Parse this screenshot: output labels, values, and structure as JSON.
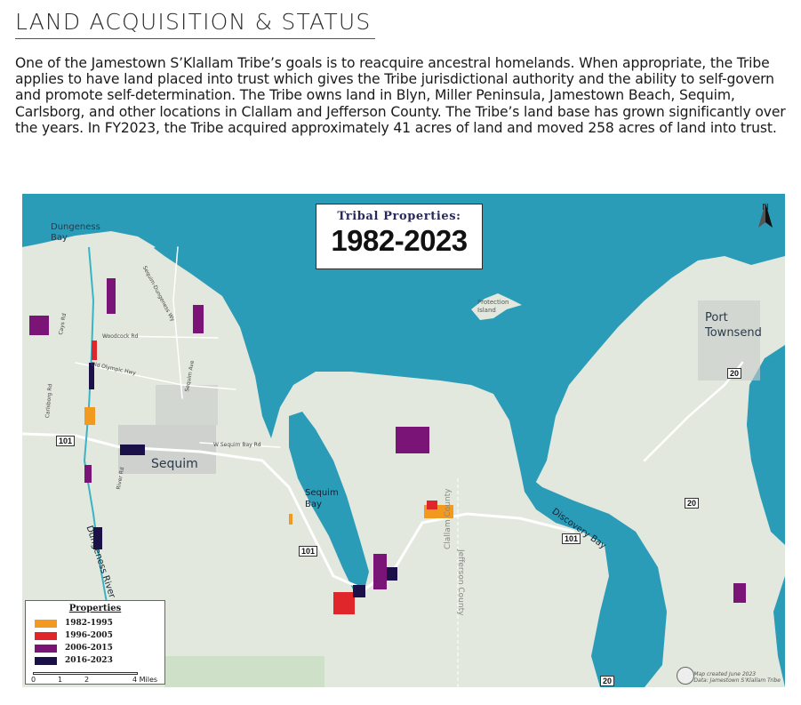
{
  "heading": "LAND ACQUISITION & STATUS",
  "intro": "One of the Jamestown S’Klallam Tribe’s goals is to reacquire ancestral homelands. When appropriate, the Tribe applies to have land placed into trust which gives the Tribe jurisdictional authority and the ability to self-govern and promote self-determination. The Tribe owns land in Blyn, Miller Peninsula, Jamestown Beach, Sequim, Carlsborg, and other locations in Clallam and Jefferson County. The Tribe’s land base has grown significantly over the years. In FY2023, the Tribe acquired approximately 41 acres of land and moved 258 acres of land into trust.",
  "map": {
    "title_top": "Tribal Properties:",
    "title_years": "1982-2023",
    "north_label": "N",
    "places": {
      "dungeness_bay": "Dungeness\nBay",
      "port_townsend": "Port\nTownsend",
      "protection_island": "Protection\nIsland",
      "sequim": "Sequim",
      "sequim_bay": "Sequim\nBay",
      "discovery_bay": "Discovery Bay",
      "dungeness_river": "Dungeness River",
      "clallam_county": "Clallam County",
      "jefferson_county": "Jefferson County"
    },
    "roads": {
      "woodcock": "Woodcock Rd",
      "old_olympic": "Old Olympic Hwy",
      "w_sequim_bay": "W Sequim Bay Rd",
      "sequim_dungeness": "Sequim-Dungeness Wy",
      "sequim_ave": "Sequim Ave",
      "cays": "Cays Rd",
      "carlsborg": "Carlsborg Rd",
      "river": "River Rd"
    },
    "shields": [
      "101",
      "101",
      "101",
      "20",
      "20",
      "20"
    ],
    "legend": {
      "title": "Properties",
      "items": [
        {
          "label": "1982-1995",
          "color": "#f29a1f"
        },
        {
          "label": "1996-2005",
          "color": "#e0262b"
        },
        {
          "label": "2006-2015",
          "color": "#7a1577"
        },
        {
          "label": "2016-2023",
          "color": "#1b1148"
        }
      ],
      "scale_labels": [
        "0",
        "1",
        "2",
        "4 Miles"
      ]
    },
    "credit": [
      "Map created June 2023",
      "Data: Jamestown S’Klallam Tribe"
    ],
    "colors": {
      "water": "#2a9cb8",
      "land": "#e2e8dd",
      "urban": "#c9cbcb"
    }
  }
}
